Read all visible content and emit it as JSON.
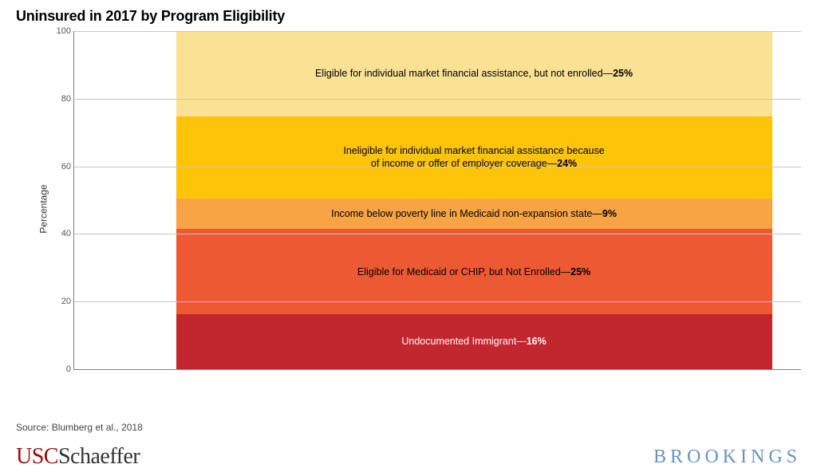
{
  "title": "Uninsured in 2017 by Program Eligibility",
  "ylabel": "Percentage",
  "ylim": [
    0,
    100
  ],
  "ytick_step": 20,
  "yticks": [
    0,
    20,
    40,
    60,
    80,
    100
  ],
  "grid_color": "#c6c6c6",
  "axis_color": "#808080",
  "background_color": "#ffffff",
  "title_fontsize": 18,
  "label_fontsize": 12,
  "tick_fontsize": 11,
  "segment_fontsize": 12.5,
  "chart": {
    "type": "stacked_bar_single",
    "bar_left_pct": 14,
    "bar_right_pct": 4,
    "segments": [
      {
        "label": "Undocumented Immigrant",
        "value": 16,
        "color": "#c2262f",
        "text_color": "#ffffff",
        "multiline": false
      },
      {
        "label": "Eligible for Medicaid or CHIP, but Not Enrolled",
        "value": 25,
        "color": "#ec5a33",
        "text_color": "#000000",
        "multiline": false
      },
      {
        "label": "Income below poverty line in Medicaid non-expansion state",
        "value": 9,
        "color": "#f7a444",
        "text_color": "#000000",
        "multiline": false
      },
      {
        "label_line1": "Ineligible for individual market financial assistance because",
        "label_line2": "of income or offer of employer coverage",
        "value": 24,
        "color": "#fec409",
        "text_color": "#000000",
        "multiline": true
      },
      {
        "label": "Eligible for individual market financial assistance, but not enrolled",
        "value": 25,
        "color": "#fae194",
        "text_color": "#000000",
        "multiline": false
      }
    ]
  },
  "source": "Source: Blumberg et al., 2018",
  "logos": {
    "usc_part1": "USC",
    "usc_part2": "Schaeffer",
    "usc_color1": "#9d0a0a",
    "usc_color2": "#333333",
    "brookings": "BROOKINGS",
    "brookings_color": "#6b93bd"
  }
}
